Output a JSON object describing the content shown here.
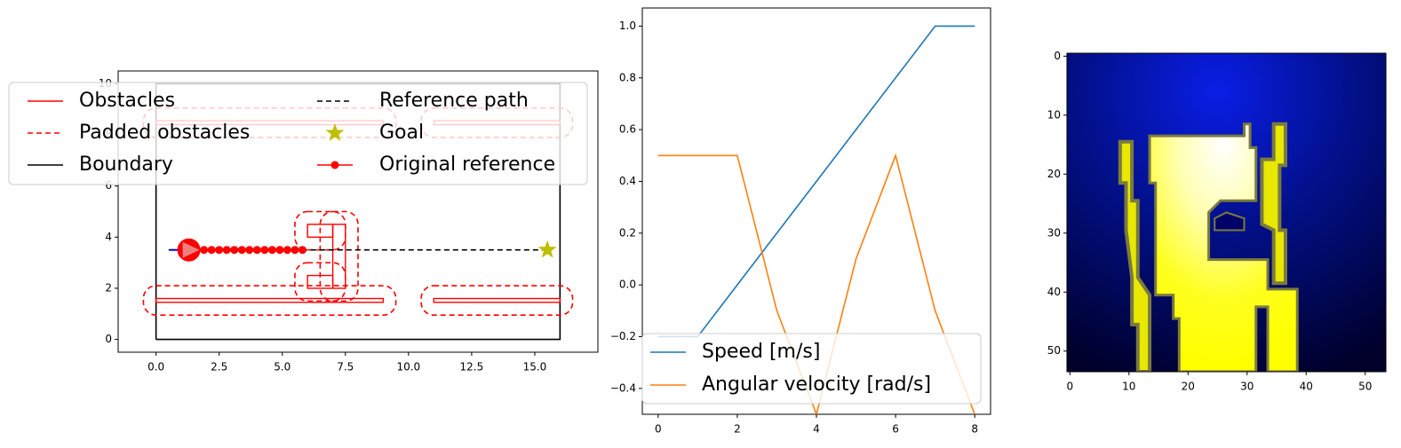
{
  "chart_data": [
    {
      "type": "line",
      "title": "",
      "xlabel": "",
      "ylabel": "",
      "xlim": [
        -1.5,
        17.5
      ],
      "ylim": [
        -0.5,
        10.5
      ],
      "xticks": [
        0.0,
        2.5,
        5.0,
        7.5,
        10.0,
        12.5,
        15.0
      ],
      "xtick_labels": [
        "0.0",
        "2.5",
        "5.0",
        "7.5",
        "10.0",
        "12.5",
        "15.0"
      ],
      "yticks": [
        0,
        2,
        4,
        6,
        8,
        10
      ],
      "ytick_labels": [
        "0",
        "2",
        "4",
        "6",
        "8",
        "10"
      ],
      "legend": {
        "position": "upper center, overlapping plot",
        "entries": [
          "Obstacles",
          "Padded obstacles",
          "Boundary",
          "Reference path",
          "Goal",
          "Original reference"
        ]
      },
      "boundary": [
        [
          0,
          0
        ],
        [
          16,
          0
        ],
        [
          16,
          10
        ],
        [
          0,
          10
        ],
        [
          0,
          0
        ]
      ],
      "obstacles": [
        {
          "x": [
            0,
            9
          ],
          "y": [
            1.45,
            1.6
          ]
        },
        {
          "x": [
            11,
            16
          ],
          "y": [
            1.45,
            1.6
          ]
        },
        {
          "x": [
            0,
            9
          ],
          "y": [
            8.4,
            8.55
          ]
        },
        {
          "x": [
            11,
            16
          ],
          "y": [
            8.4,
            8.55
          ]
        },
        {
          "x": [
            6,
            7
          ],
          "y": [
            4,
            4.5
          ]
        },
        {
          "x": [
            6,
            7
          ],
          "y": [
            2,
            2.5
          ]
        },
        {
          "x": [
            7,
            7.5
          ],
          "y": [
            2,
            4.5
          ]
        }
      ],
      "padded_margin": 0.5,
      "reference_path": {
        "x": [
          0.5,
          15.5
        ],
        "y": [
          3.5,
          3.5
        ]
      },
      "goal": {
        "x": 15.5,
        "y": 3.5
      },
      "original_reference": {
        "x": [
          1.3,
          1.6,
          1.9,
          2.2,
          2.5,
          2.8,
          3.1,
          3.4,
          3.7,
          4.0,
          4.3,
          4.6,
          4.9,
          5.2,
          5.5,
          5.8
        ],
        "y": 3.5
      },
      "robot": {
        "x": 1.3,
        "y": 3.5,
        "heading_deg": 0
      },
      "colors": {
        "obstacle": "#ff0000",
        "reference": "#000000",
        "goal": "#bfbf00",
        "robot": "#ff0000",
        "robot_arrow": "#f08080",
        "start_segment": "#0000ff"
      }
    },
    {
      "type": "line",
      "title": "",
      "xlabel": "",
      "ylabel": "",
      "xlim": [
        -0.4,
        8.4
      ],
      "ylim": [
        -0.5,
        1.07
      ],
      "xticks": [
        0,
        2,
        4,
        6,
        8
      ],
      "xtick_labels": [
        "0",
        "2",
        "4",
        "6",
        "8"
      ],
      "yticks": [
        -0.4,
        -0.2,
        0.0,
        0.2,
        0.4,
        0.6,
        0.8,
        1.0
      ],
      "ytick_labels": [
        "−0.4",
        "−0.2",
        "0.0",
        "0.2",
        "0.4",
        "0.6",
        "0.8",
        "1.0"
      ],
      "legend": {
        "position": "lower left"
      },
      "x": [
        0,
        1,
        2,
        3,
        4,
        5,
        6,
        7,
        8
      ],
      "series": [
        {
          "name": "Speed [m/s]",
          "color": "#1f77b4",
          "values": [
            -0.2,
            -0.2,
            0.0,
            0.2,
            0.4,
            0.6,
            0.8,
            1.0,
            1.0
          ]
        },
        {
          "name": "Angular velocity [rad/s]",
          "color": "#ff7f0e",
          "values": [
            0.5,
            0.5,
            0.5,
            -0.1,
            -0.5,
            0.1,
            0.5,
            -0.1,
            -0.5
          ]
        }
      ]
    },
    {
      "type": "heatmap",
      "title": "",
      "xlim": [
        -0.5,
        53.5
      ],
      "ylim": [
        53.5,
        -0.5
      ],
      "xticks": [
        0,
        10,
        20,
        30,
        40,
        50
      ],
      "xtick_labels": [
        "0",
        "10",
        "20",
        "30",
        "40",
        "50"
      ],
      "yticks": [
        0,
        10,
        20,
        30,
        40,
        50
      ],
      "ytick_labels": [
        "0",
        "10",
        "20",
        "30",
        "40",
        "50"
      ],
      "colormap": "dark blue background with bright blue glow near top center; yellow free-space region with white highlight",
      "free_region": [
        [
          14,
          14
        ],
        [
          30,
          14
        ],
        [
          30,
          12
        ],
        [
          31,
          12
        ],
        [
          31,
          16
        ],
        [
          32,
          16
        ],
        [
          32,
          25
        ],
        [
          26,
          25
        ],
        [
          24,
          27
        ],
        [
          24,
          35
        ],
        [
          34,
          35
        ],
        [
          34,
          40
        ],
        [
          39,
          40
        ],
        [
          39,
          54
        ],
        [
          34,
          54
        ],
        [
          34,
          43
        ],
        [
          32,
          43
        ],
        [
          32,
          54
        ],
        [
          19,
          54
        ],
        [
          19,
          45
        ],
        [
          18,
          45
        ],
        [
          18,
          41
        ],
        [
          15,
          41
        ],
        [
          15,
          22
        ],
        [
          14,
          22
        ]
      ],
      "left_wall": [
        [
          9,
          15
        ],
        [
          11,
          15
        ],
        [
          11,
          25
        ],
        [
          12,
          25
        ],
        [
          12,
          38
        ],
        [
          14,
          41
        ],
        [
          14,
          54
        ],
        [
          12,
          54
        ],
        [
          12,
          46
        ],
        [
          11,
          46
        ],
        [
          11,
          38
        ],
        [
          10,
          30
        ],
        [
          10,
          22
        ],
        [
          9,
          22
        ]
      ],
      "right_wall": [
        [
          35,
          12
        ],
        [
          37,
          12
        ],
        [
          37,
          19
        ],
        [
          36,
          19
        ],
        [
          36,
          30
        ],
        [
          37,
          30
        ],
        [
          37,
          39
        ],
        [
          35,
          39
        ],
        [
          35,
          30
        ],
        [
          33,
          29
        ],
        [
          33,
          18
        ],
        [
          35,
          18
        ]
      ],
      "blocks": [
        [
          25,
          28
        ],
        [
          27,
          27
        ],
        [
          30,
          28
        ],
        [
          30,
          30
        ],
        [
          25,
          30
        ]
      ],
      "colors": {
        "background_dark": "#00003a",
        "background_glow": "#0a1ee6",
        "free_bright": "#ffffe8",
        "free_base": "#ffff00",
        "wall": "#e8e800",
        "shadow": "#7a7a40"
      }
    }
  ]
}
